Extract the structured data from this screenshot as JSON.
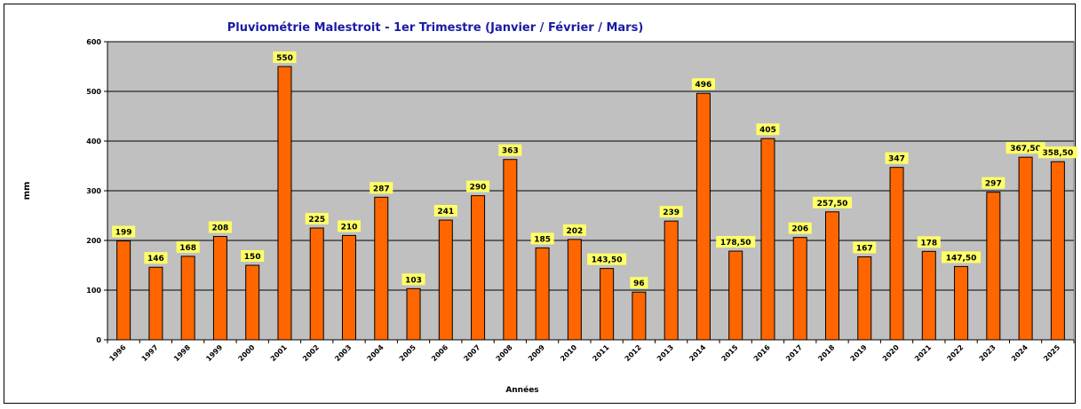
{
  "chart_data": {
    "type": "bar",
    "title": "Pluviométrie Malestroit - 1er Trimestre (Janvier / Février / Mars)",
    "xlabel": "Années",
    "ylabel": "mm",
    "ylim": [
      0,
      600
    ],
    "yticks": [
      0,
      100,
      200,
      300,
      400,
      500,
      600
    ],
    "grid": true,
    "categories": [
      "1996",
      "1997",
      "1998",
      "1999",
      "2000",
      "2001",
      "2002",
      "2003",
      "2004",
      "2005",
      "2006",
      "2007",
      "2008",
      "2009",
      "2010",
      "2011",
      "2012",
      "2013",
      "2014",
      "2015",
      "2016",
      "2017",
      "2018",
      "2019",
      "2020",
      "2021",
      "2022",
      "2023",
      "2024",
      "2025"
    ],
    "values": [
      199,
      146,
      168,
      208,
      150,
      550,
      225,
      210,
      287,
      103,
      241,
      290,
      363,
      185,
      202,
      143.5,
      96,
      239,
      496,
      178.5,
      405,
      206,
      257.5,
      167,
      347,
      178,
      147.5,
      297,
      367.5,
      358.5
    ],
    "data_labels": [
      "199",
      "146",
      "168",
      "208",
      "150",
      "550",
      "225",
      "210",
      "287",
      "103",
      "241",
      "290",
      "363",
      "185",
      "202",
      "143,50",
      "96",
      "239",
      "496",
      "178,50",
      "405",
      "206",
      "257,50",
      "167",
      "347",
      "178",
      "147,50",
      "297",
      "367,50",
      "358,50"
    ],
    "colors": {
      "bar": "#ff6600",
      "plot_bg": "#c0c0c0",
      "label_bg": "#ffff66",
      "title": "#1a1aa6"
    }
  }
}
